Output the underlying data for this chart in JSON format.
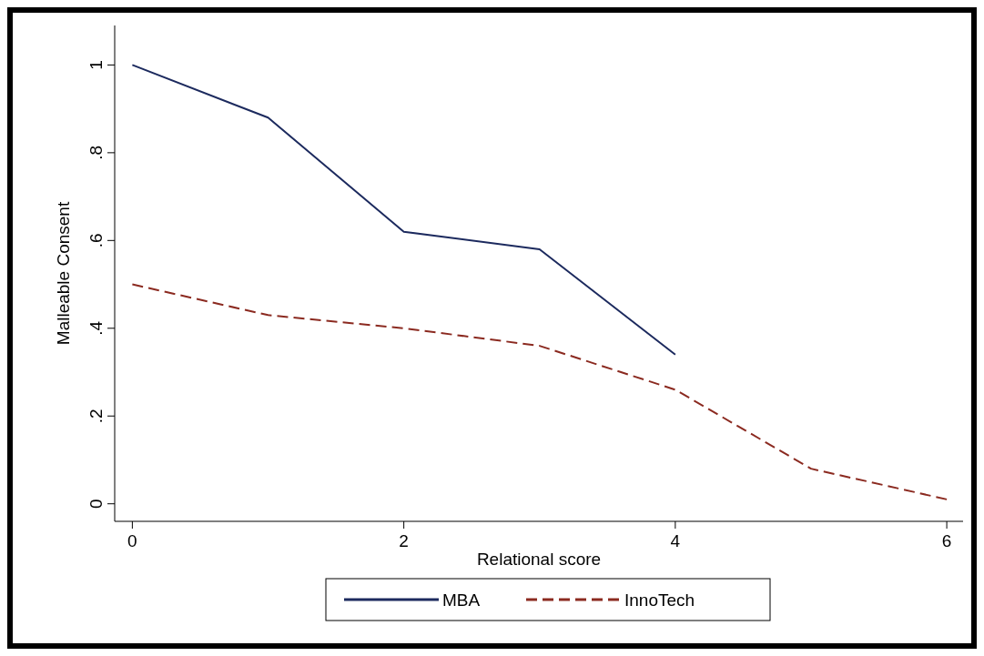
{
  "chart_data": {
    "type": "line",
    "xlabel": "Relational score",
    "ylabel": "Malleable Consent",
    "x": [
      0,
      1,
      2,
      3,
      4,
      5,
      6
    ],
    "series": [
      {
        "name": "MBA",
        "color": "#1c2a5e",
        "values": [
          1,
          0.88,
          0.62,
          0.58,
          0.34,
          null,
          null
        ],
        "line_style": "solid"
      },
      {
        "name": "InnoTech",
        "color": "#8b2a20",
        "values": [
          0.5,
          0.43,
          0.4,
          0.36,
          0.26,
          0.08,
          0.01
        ],
        "line_style": "dashed"
      }
    ],
    "xlim": [
      -0.13,
      6.12
    ],
    "xticks": [
      0,
      2,
      4,
      6
    ],
    "ylim": [
      -0.04,
      1.09
    ],
    "yticks": [
      {
        "value": 0,
        "label": "0"
      },
      {
        "value": 0.2,
        "label": ".2"
      },
      {
        "value": 0.4,
        "label": ".4"
      },
      {
        "value": 0.6,
        "label": ".6"
      },
      {
        "value": 0.8,
        "label": ".8"
      },
      {
        "value": 1,
        "label": "1"
      }
    ],
    "grid": false,
    "legend": "bottom",
    "marker": "none"
  }
}
